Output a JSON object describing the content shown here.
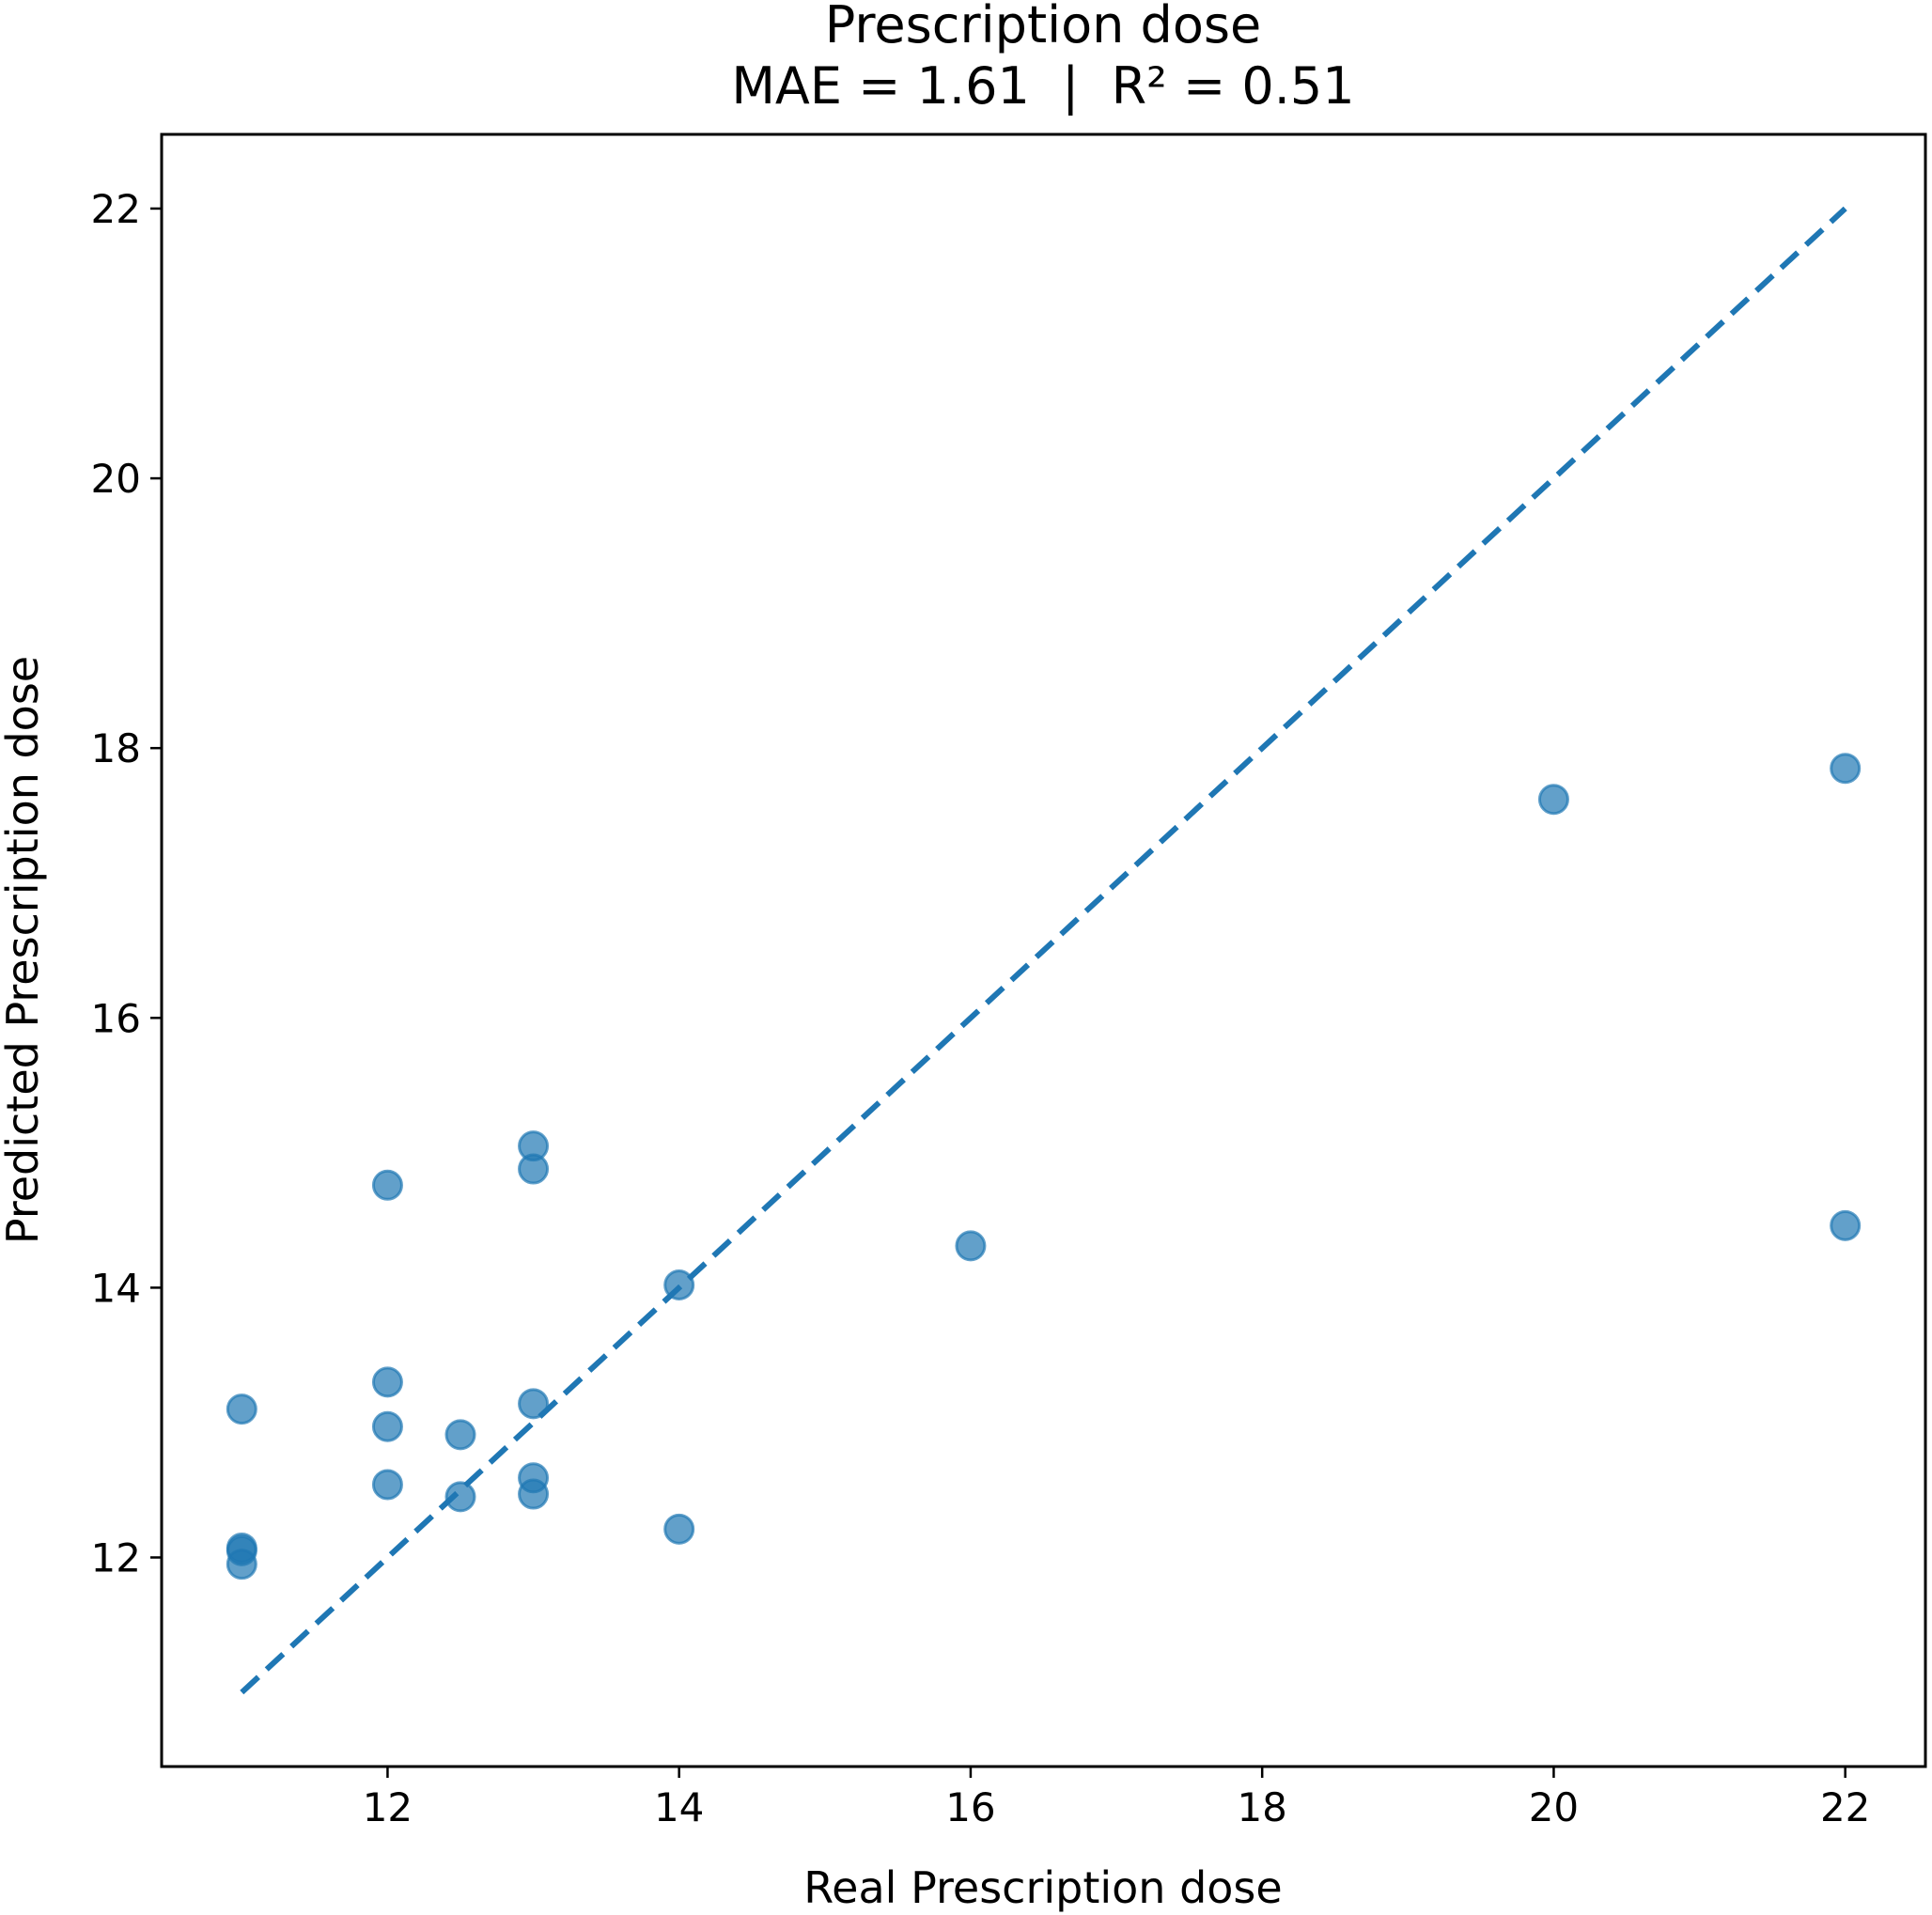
{
  "chart_data": {
    "type": "scatter",
    "title": "Prescription dose",
    "subtitle": "MAE = 1.61  |  R² = 0.51",
    "xlabel": "Real Prescription dose",
    "ylabel": "Predicted Prescription dose",
    "xlim": [
      10.45,
      22.55
    ],
    "ylim": [
      10.45,
      22.55
    ],
    "xticks": [
      12,
      14,
      16,
      18,
      20,
      22
    ],
    "yticks": [
      12,
      14,
      16,
      18,
      20,
      22
    ],
    "grid": false,
    "point_color": "#1f77b4",
    "reference_line": {
      "style": "dashed",
      "color": "#1f77b4",
      "from": [
        11,
        11
      ],
      "to": [
        22,
        22
      ]
    },
    "points": [
      [
        11,
        13.1
      ],
      [
        11,
        12.07
      ],
      [
        11,
        12.05
      ],
      [
        11,
        11.95
      ],
      [
        12,
        14.76
      ],
      [
        12,
        13.3
      ],
      [
        12,
        12.97
      ],
      [
        12,
        12.54
      ],
      [
        12.5,
        12.91
      ],
      [
        12.5,
        12.45
      ],
      [
        13,
        15.05
      ],
      [
        13,
        14.88
      ],
      [
        13,
        13.14
      ],
      [
        13,
        12.59
      ],
      [
        13,
        12.47
      ],
      [
        14,
        14.02
      ],
      [
        14,
        12.21
      ],
      [
        16,
        14.31
      ],
      [
        20,
        17.62
      ],
      [
        22,
        17.85
      ],
      [
        22,
        14.46
      ]
    ]
  }
}
